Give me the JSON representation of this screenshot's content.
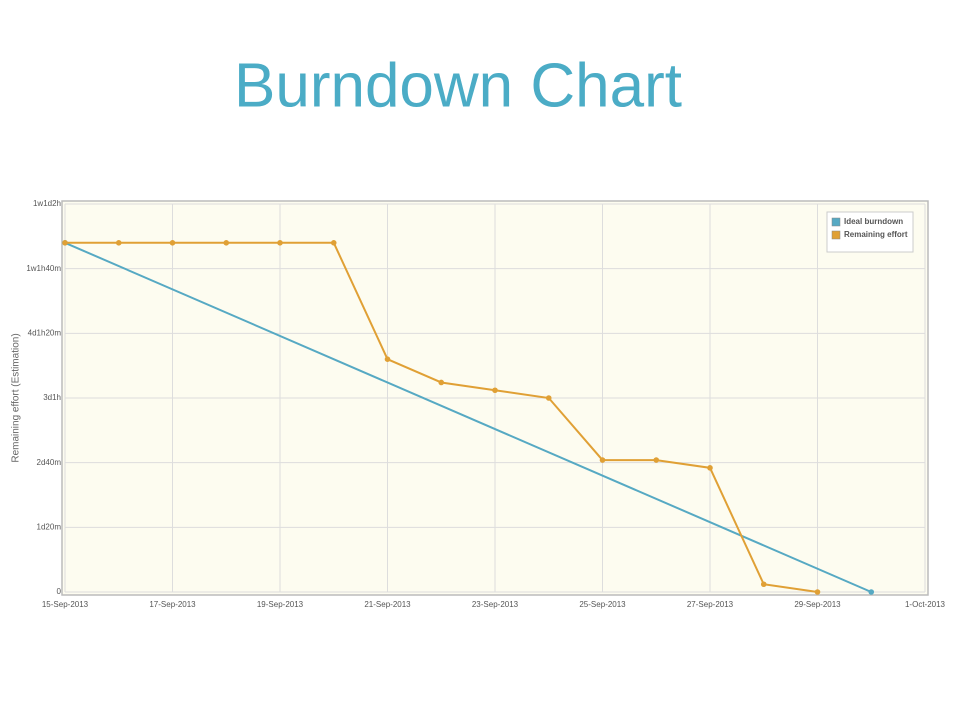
{
  "chart_data": {
    "type": "line",
    "title": "Burndown Chart",
    "y_label": "Remaining effort (Estimation)",
    "xlim": [
      "15-Sep-2013",
      "1-Oct-2013"
    ],
    "xticks": [
      "15-Sep-2013",
      "17-Sep-2013",
      "19-Sep-2013",
      "21-Sep-2013",
      "23-Sep-2013",
      "25-Sep-2013",
      "27-Sep-2013",
      "29-Sep-2013",
      "1-Oct-2013"
    ],
    "ylim": [
      0,
      3000
    ],
    "yticks": [
      0,
      {
        "value": 500,
        "label": "1d20m"
      },
      {
        "value": 1000,
        "label": "2d40m"
      },
      {
        "value": 1500,
        "label": "3d1h"
      },
      {
        "value": 2000,
        "label": "4d1h20m"
      },
      {
        "value": 2500,
        "label": "1w1h40m"
      },
      {
        "value": 3000,
        "label": "1w1d2h"
      }
    ],
    "grid": true,
    "legend": "top-right",
    "series": [
      {
        "name": "Ideal burndown",
        "color": "#56a9c3",
        "x": [
          "15-Sep-2013",
          "30-Sep-2013"
        ],
        "values": [
          2700,
          0
        ]
      },
      {
        "name": "Remaining effort",
        "color": "#e0a035",
        "x": [
          "15-Sep-2013",
          "16-Sep-2013",
          "17-Sep-2013",
          "18-Sep-2013",
          "19-Sep-2013",
          "20-Sep-2013",
          "21-Sep-2013",
          "22-Sep-2013",
          "23-Sep-2013",
          "24-Sep-2013",
          "25-Sep-2013",
          "26-Sep-2013",
          "27-Sep-2013",
          "28-Sep-2013",
          "29-Sep-2013"
        ],
        "values": [
          2700,
          2700,
          2700,
          2700,
          2700,
          2700,
          1800,
          1620,
          1560,
          1500,
          1020,
          1020,
          960,
          60,
          0
        ]
      }
    ]
  }
}
